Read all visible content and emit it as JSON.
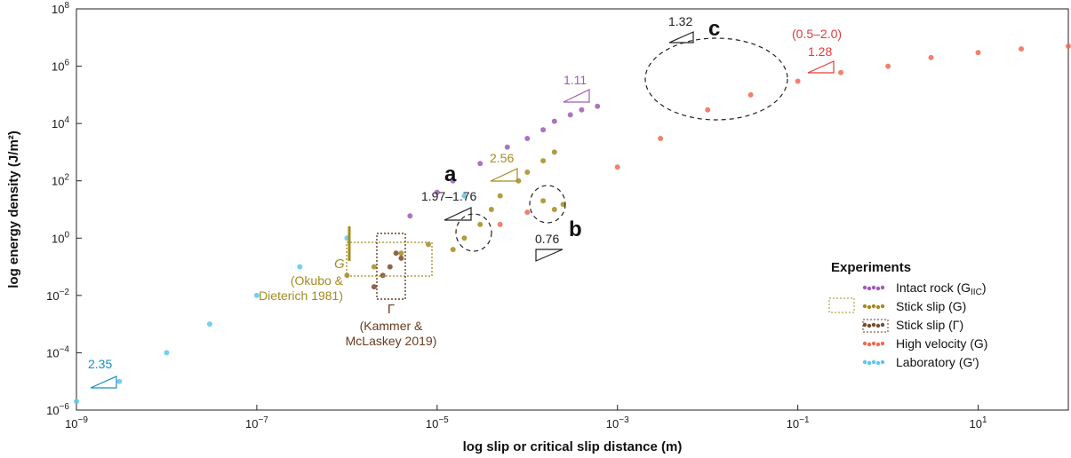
{
  "chart_data": {
    "type": "scatter",
    "xlabel": "log slip or critical slip distance (m)",
    "ylabel": "log energy density (J/m²)",
    "x_scale": "log",
    "y_scale": "log",
    "xlim": [
      1e-09,
      100
    ],
    "ylim": [
      1e-06,
      100000000.0
    ],
    "x_ticks": [
      {
        "value": 1e-09,
        "base": "10",
        "exp": "−9"
      },
      {
        "value": 1e-07,
        "base": "10",
        "exp": "−7"
      },
      {
        "value": 1e-05,
        "base": "10",
        "exp": "−5"
      },
      {
        "value": 0.001,
        "base": "10",
        "exp": "−3"
      },
      {
        "value": 0.1,
        "base": "10",
        "exp": "−1"
      },
      {
        "value": 10,
        "base": "10",
        "exp": "1"
      }
    ],
    "y_ticks": [
      {
        "value": 1e-06,
        "base": "10",
        "exp": "−6"
      },
      {
        "value": 0.0001,
        "base": "10",
        "exp": "−4"
      },
      {
        "value": 0.01,
        "base": "10",
        "exp": "−2"
      },
      {
        "value": 1,
        "base": "10",
        "exp": "0"
      },
      {
        "value": 100,
        "base": "10",
        "exp": "2"
      },
      {
        "value": 10000,
        "base": "10",
        "exp": "4"
      },
      {
        "value": 1000000,
        "base": "10",
        "exp": "6"
      },
      {
        "value": 100000000,
        "base": "10",
        "exp": "8"
      }
    ],
    "grid": false,
    "legend_position": "bottom-right",
    "legend_title": "Experiments",
    "series": [
      {
        "name": "Intact rock (G",
        "name_sub": "IIC",
        "name_end": ")",
        "color": "#a05ab8",
        "points": [
          [
            5e-06,
            6
          ],
          [
            1e-05,
            40
          ],
          [
            1.5e-05,
            100
          ],
          [
            3e-05,
            400
          ],
          [
            6e-05,
            1500
          ],
          [
            0.0001,
            3000
          ],
          [
            0.00015,
            6000
          ],
          [
            0.0002,
            12000
          ],
          [
            0.0003,
            20000
          ],
          [
            0.0004,
            30000
          ],
          [
            0.0006,
            40000
          ]
        ]
      },
      {
        "name": "Stick slip (G)",
        "name_end": "",
        "color": "#a48b22",
        "points": [
          [
            1e-06,
            0.05
          ],
          [
            2e-06,
            0.1
          ],
          [
            4e-06,
            0.3
          ],
          [
            8e-06,
            0.6
          ],
          [
            1.5e-05,
            0.4
          ],
          [
            2e-05,
            1
          ],
          [
            3e-05,
            3
          ],
          [
            4e-05,
            10
          ],
          [
            5e-05,
            30
          ],
          [
            8e-05,
            100
          ],
          [
            0.0001,
            200
          ],
          [
            0.00015,
            500
          ],
          [
            0.0002,
            1000
          ],
          [
            0.00015,
            20
          ],
          [
            0.0002,
            10
          ],
          [
            0.00025,
            15
          ]
        ]
      },
      {
        "name": "Stick slip (Γ)",
        "name_end": "",
        "color": "#7a4a2a",
        "points": [
          [
            2e-06,
            0.02
          ],
          [
            2.5e-06,
            0.05
          ],
          [
            3e-06,
            0.1
          ],
          [
            3.5e-06,
            0.3
          ],
          [
            4e-06,
            0.2
          ]
        ]
      },
      {
        "name": "High velocity (G)",
        "name_end": "",
        "color": "#ee6b55",
        "points": [
          [
            5e-05,
            3
          ],
          [
            0.0001,
            8
          ],
          [
            0.001,
            300
          ],
          [
            0.003,
            3000
          ],
          [
            0.01,
            30000
          ],
          [
            0.03,
            100000
          ],
          [
            0.1,
            300000
          ],
          [
            0.3,
            600000
          ],
          [
            1,
            1000000
          ],
          [
            3,
            2000000
          ],
          [
            10,
            3000000
          ],
          [
            30,
            4000000
          ],
          [
            100,
            5000000
          ]
        ]
      },
      {
        "name": "Laboratory (G′)",
        "name_end": "",
        "color": "#5bc8ec",
        "points": [
          [
            1e-09,
            2e-06
          ],
          [
            3e-09,
            1e-05
          ],
          [
            1e-08,
            0.0001
          ],
          [
            3e-08,
            0.001
          ],
          [
            1e-07,
            0.01
          ],
          [
            3e-07,
            0.1
          ],
          [
            1e-06,
            1
          ],
          [
            2e-05,
            30
          ]
        ]
      }
    ],
    "annotations": {
      "a": "a",
      "b": "b",
      "c": "c",
      "slopes": [
        "2.35",
        "1.97–1.76",
        "0.76",
        "2.56",
        "1.11",
        "1.32",
        "(0.5–2.0)",
        "1.28"
      ],
      "okubo_g": "G",
      "okubo_line1": "(Okubo &",
      "okubo_line2": "Dieterich 1981)",
      "kammer_gamma": "Γ",
      "kammer_line1": "(Kammer &",
      "kammer_line2": "McLaskey 2019)"
    }
  }
}
